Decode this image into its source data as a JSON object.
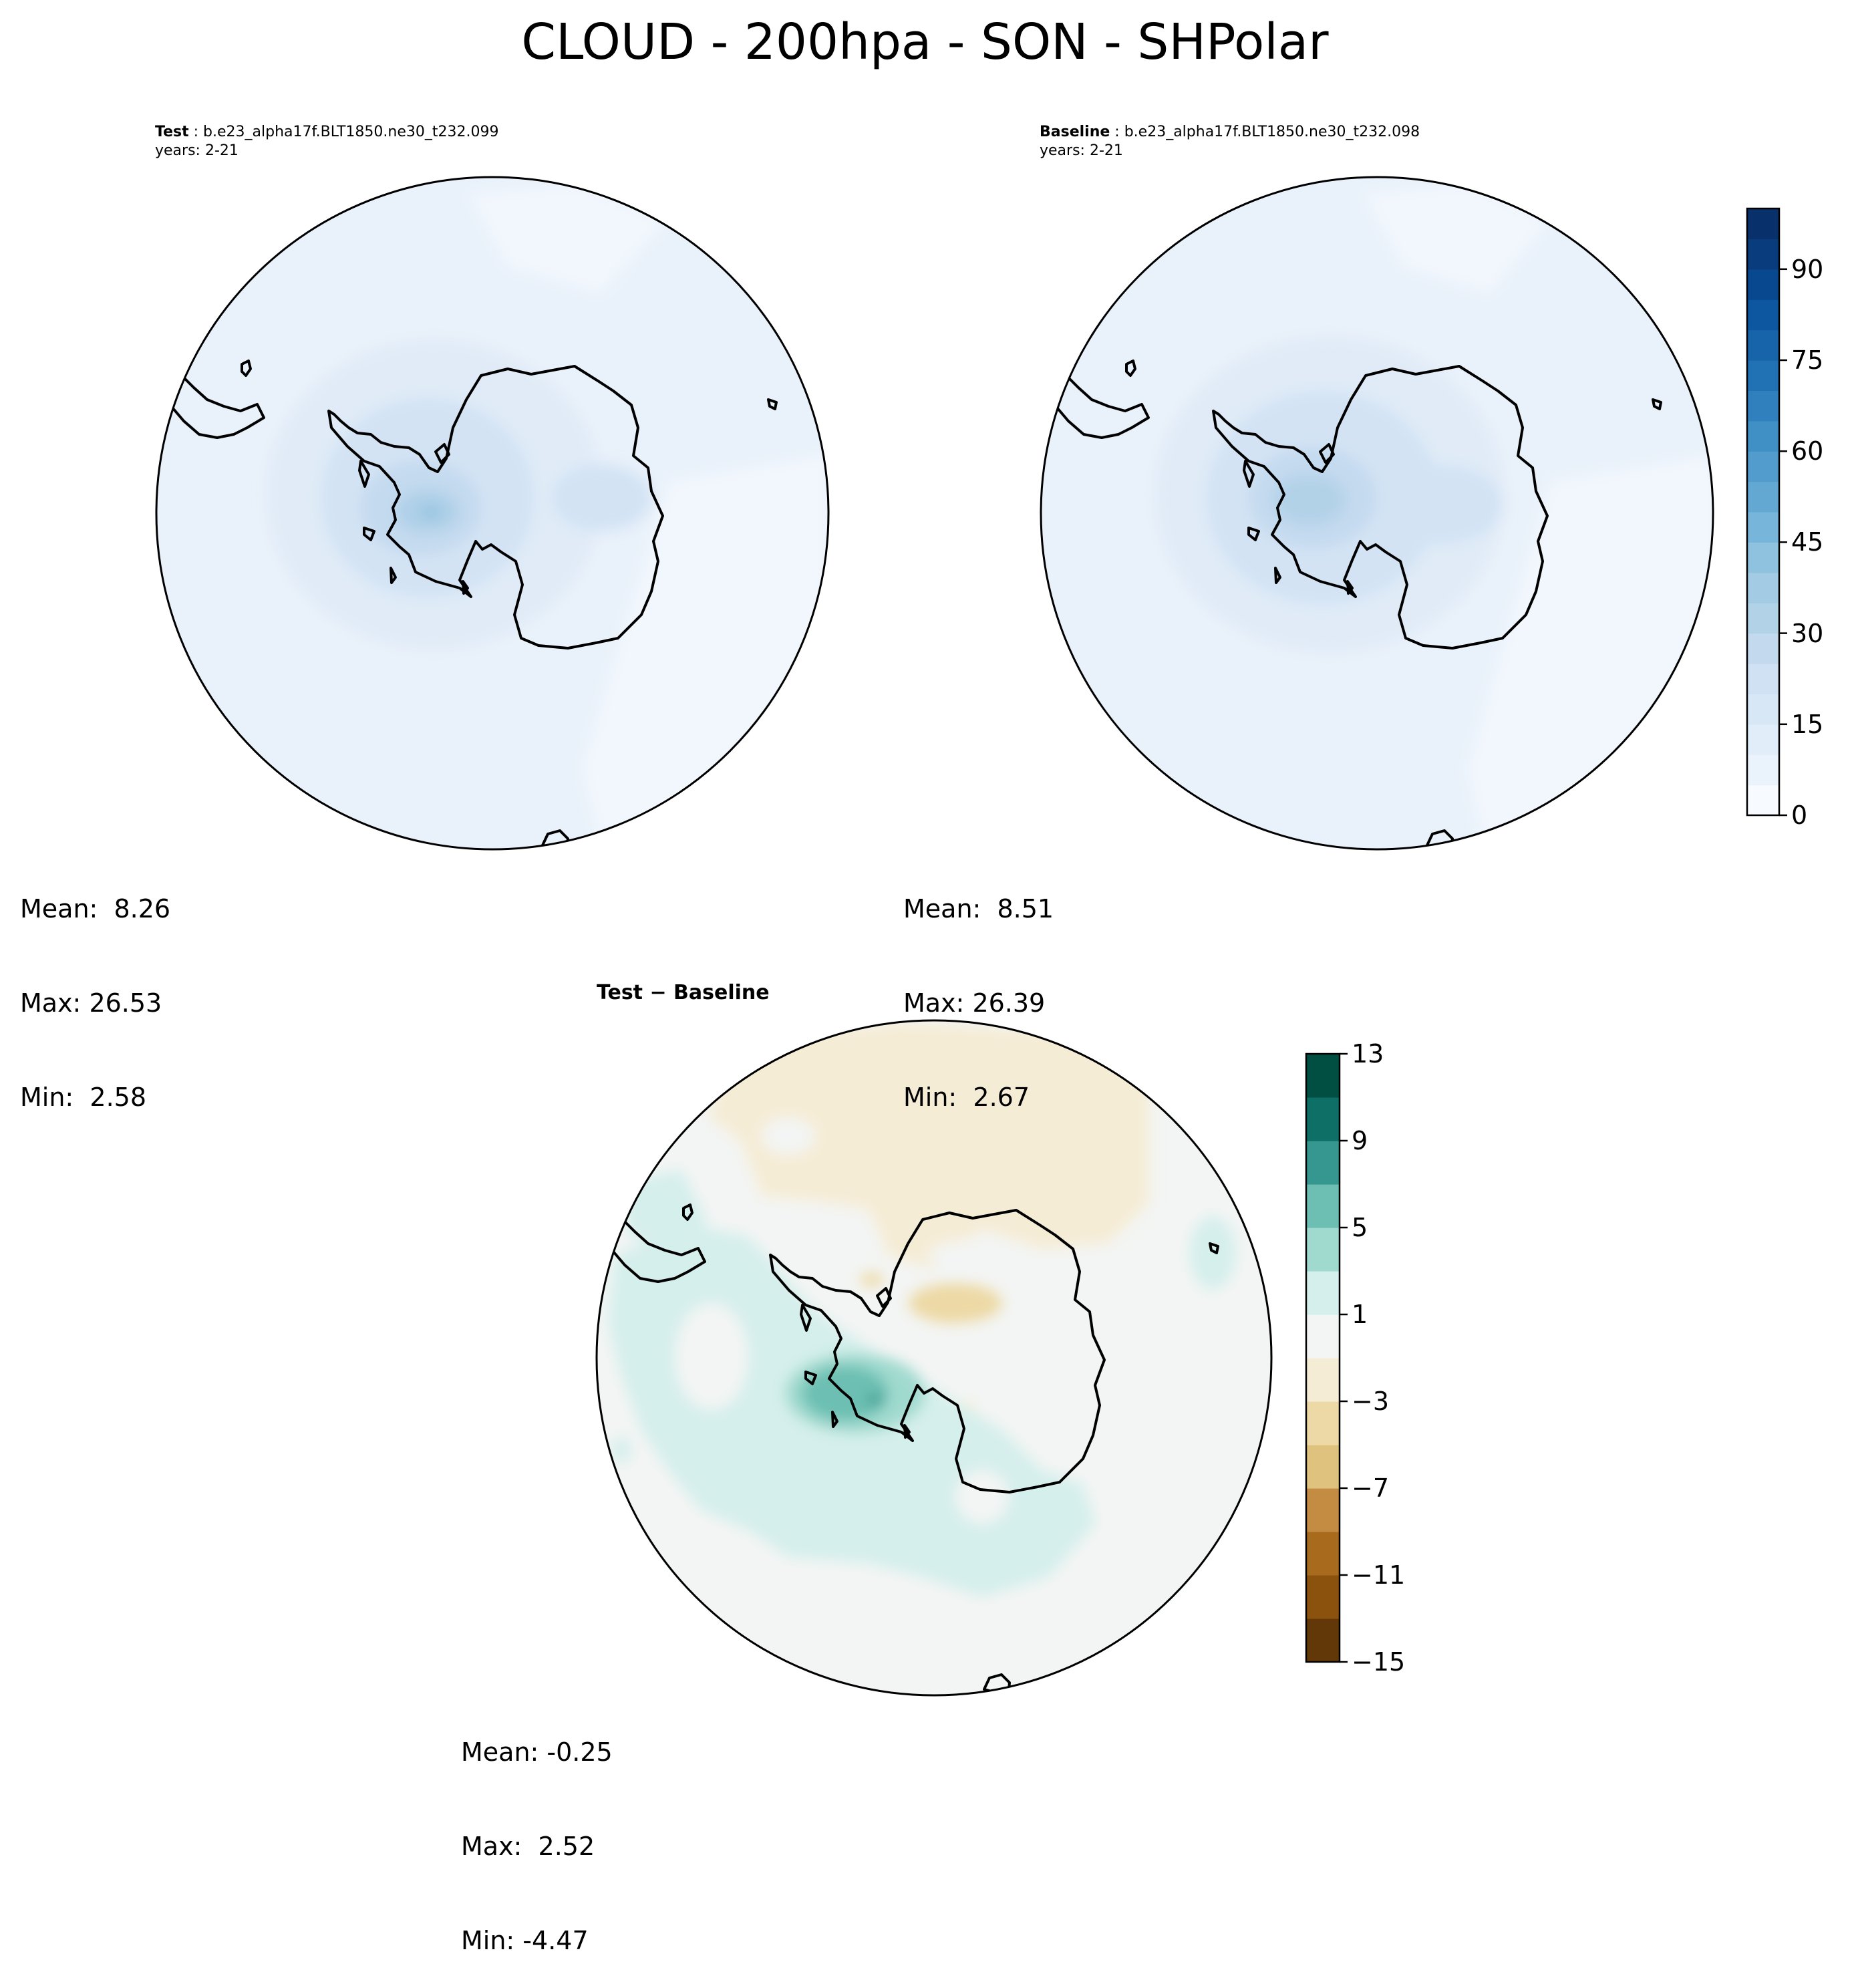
{
  "title": "CLOUD - 200hpa - SON - SHPolar",
  "panels": {
    "test": {
      "label": "Test",
      "case": "b.e23_alpha17f.BLT1850.ne30_t232.099",
      "years": "years: 2-21",
      "stats": {
        "mean": "Mean:  8.26",
        "max": "Max: 26.53",
        "min": "Min:  2.58"
      }
    },
    "baseline": {
      "label": "Baseline",
      "case": "b.e23_alpha17f.BLT1850.ne30_t232.098",
      "years": "years: 2-21",
      "stats": {
        "mean": "Mean:  8.51",
        "max": "Max: 26.39",
        "min": "Min:  2.67"
      }
    },
    "diff": {
      "title": "Test − Baseline",
      "stats": {
        "mean": "Mean: -0.25",
        "max": "Max:  2.52",
        "min": "Min: -4.47"
      }
    }
  },
  "chart_data": [
    {
      "type": "heatmap",
      "title": "Test : b.e23_alpha17f.BLT1850.ne30_t232.099",
      "projection": "south polar stereographic",
      "variable": "CLOUD",
      "level": "200hpa",
      "season": "SON",
      "mean": 8.26,
      "max": 26.53,
      "min": 2.58,
      "colorbar": "shared with baseline"
    },
    {
      "type": "heatmap",
      "title": "Baseline : b.e23_alpha17f.BLT1850.ne30_t232.098",
      "projection": "south polar stereographic",
      "variable": "CLOUD",
      "level": "200hpa",
      "season": "SON",
      "mean": 8.51,
      "max": 26.39,
      "min": 2.67,
      "colorbar": {
        "range": [
          0,
          100
        ],
        "levels": [
          0,
          5,
          10,
          15,
          20,
          25,
          30,
          35,
          40,
          45,
          50,
          55,
          60,
          65,
          70,
          75,
          80,
          85,
          90,
          95,
          100
        ],
        "ticks": [
          "0",
          "15",
          "30",
          "45",
          "60",
          "75",
          "90"
        ],
        "colormap": "Blues",
        "colors": [
          "#f7fbff",
          "#eaf2fb",
          "#e1edf8",
          "#d8e7f5",
          "#cfe1f2",
          "#c2d9ee",
          "#b2d2e8",
          "#a3cbe3",
          "#8fc2de",
          "#77b6da",
          "#63a8d3",
          "#519ccc",
          "#4090c5",
          "#3080bd",
          "#2171b5",
          "#1764ab",
          "#0d57a1",
          "#08488e",
          "#083c7d",
          "#08306b"
        ]
      }
    },
    {
      "type": "heatmap",
      "title": "Test − Baseline",
      "projection": "south polar stereographic",
      "mean": -0.25,
      "max": 2.52,
      "min": -4.47,
      "colorbar": {
        "range": [
          -15,
          13
        ],
        "levels": [
          -15,
          -13,
          -11,
          -9,
          -7,
          -5,
          -3,
          -1,
          1,
          3,
          5,
          7,
          9,
          11,
          13
        ],
        "ticks": [
          "−15",
          "−11",
          "−7",
          "−3",
          "1",
          "5",
          "9",
          "13"
        ],
        "colormap": "BrBG",
        "colors": [
          "#623809",
          "#8a520d",
          "#a86a1d",
          "#c48c43",
          "#dfc27d",
          "#edd9a5",
          "#f5ecd5",
          "#f3f5f4",
          "#d5efec",
          "#a0dacf",
          "#6cbfb2",
          "#35978f",
          "#0e6f66",
          "#014f43"
        ]
      }
    }
  ]
}
